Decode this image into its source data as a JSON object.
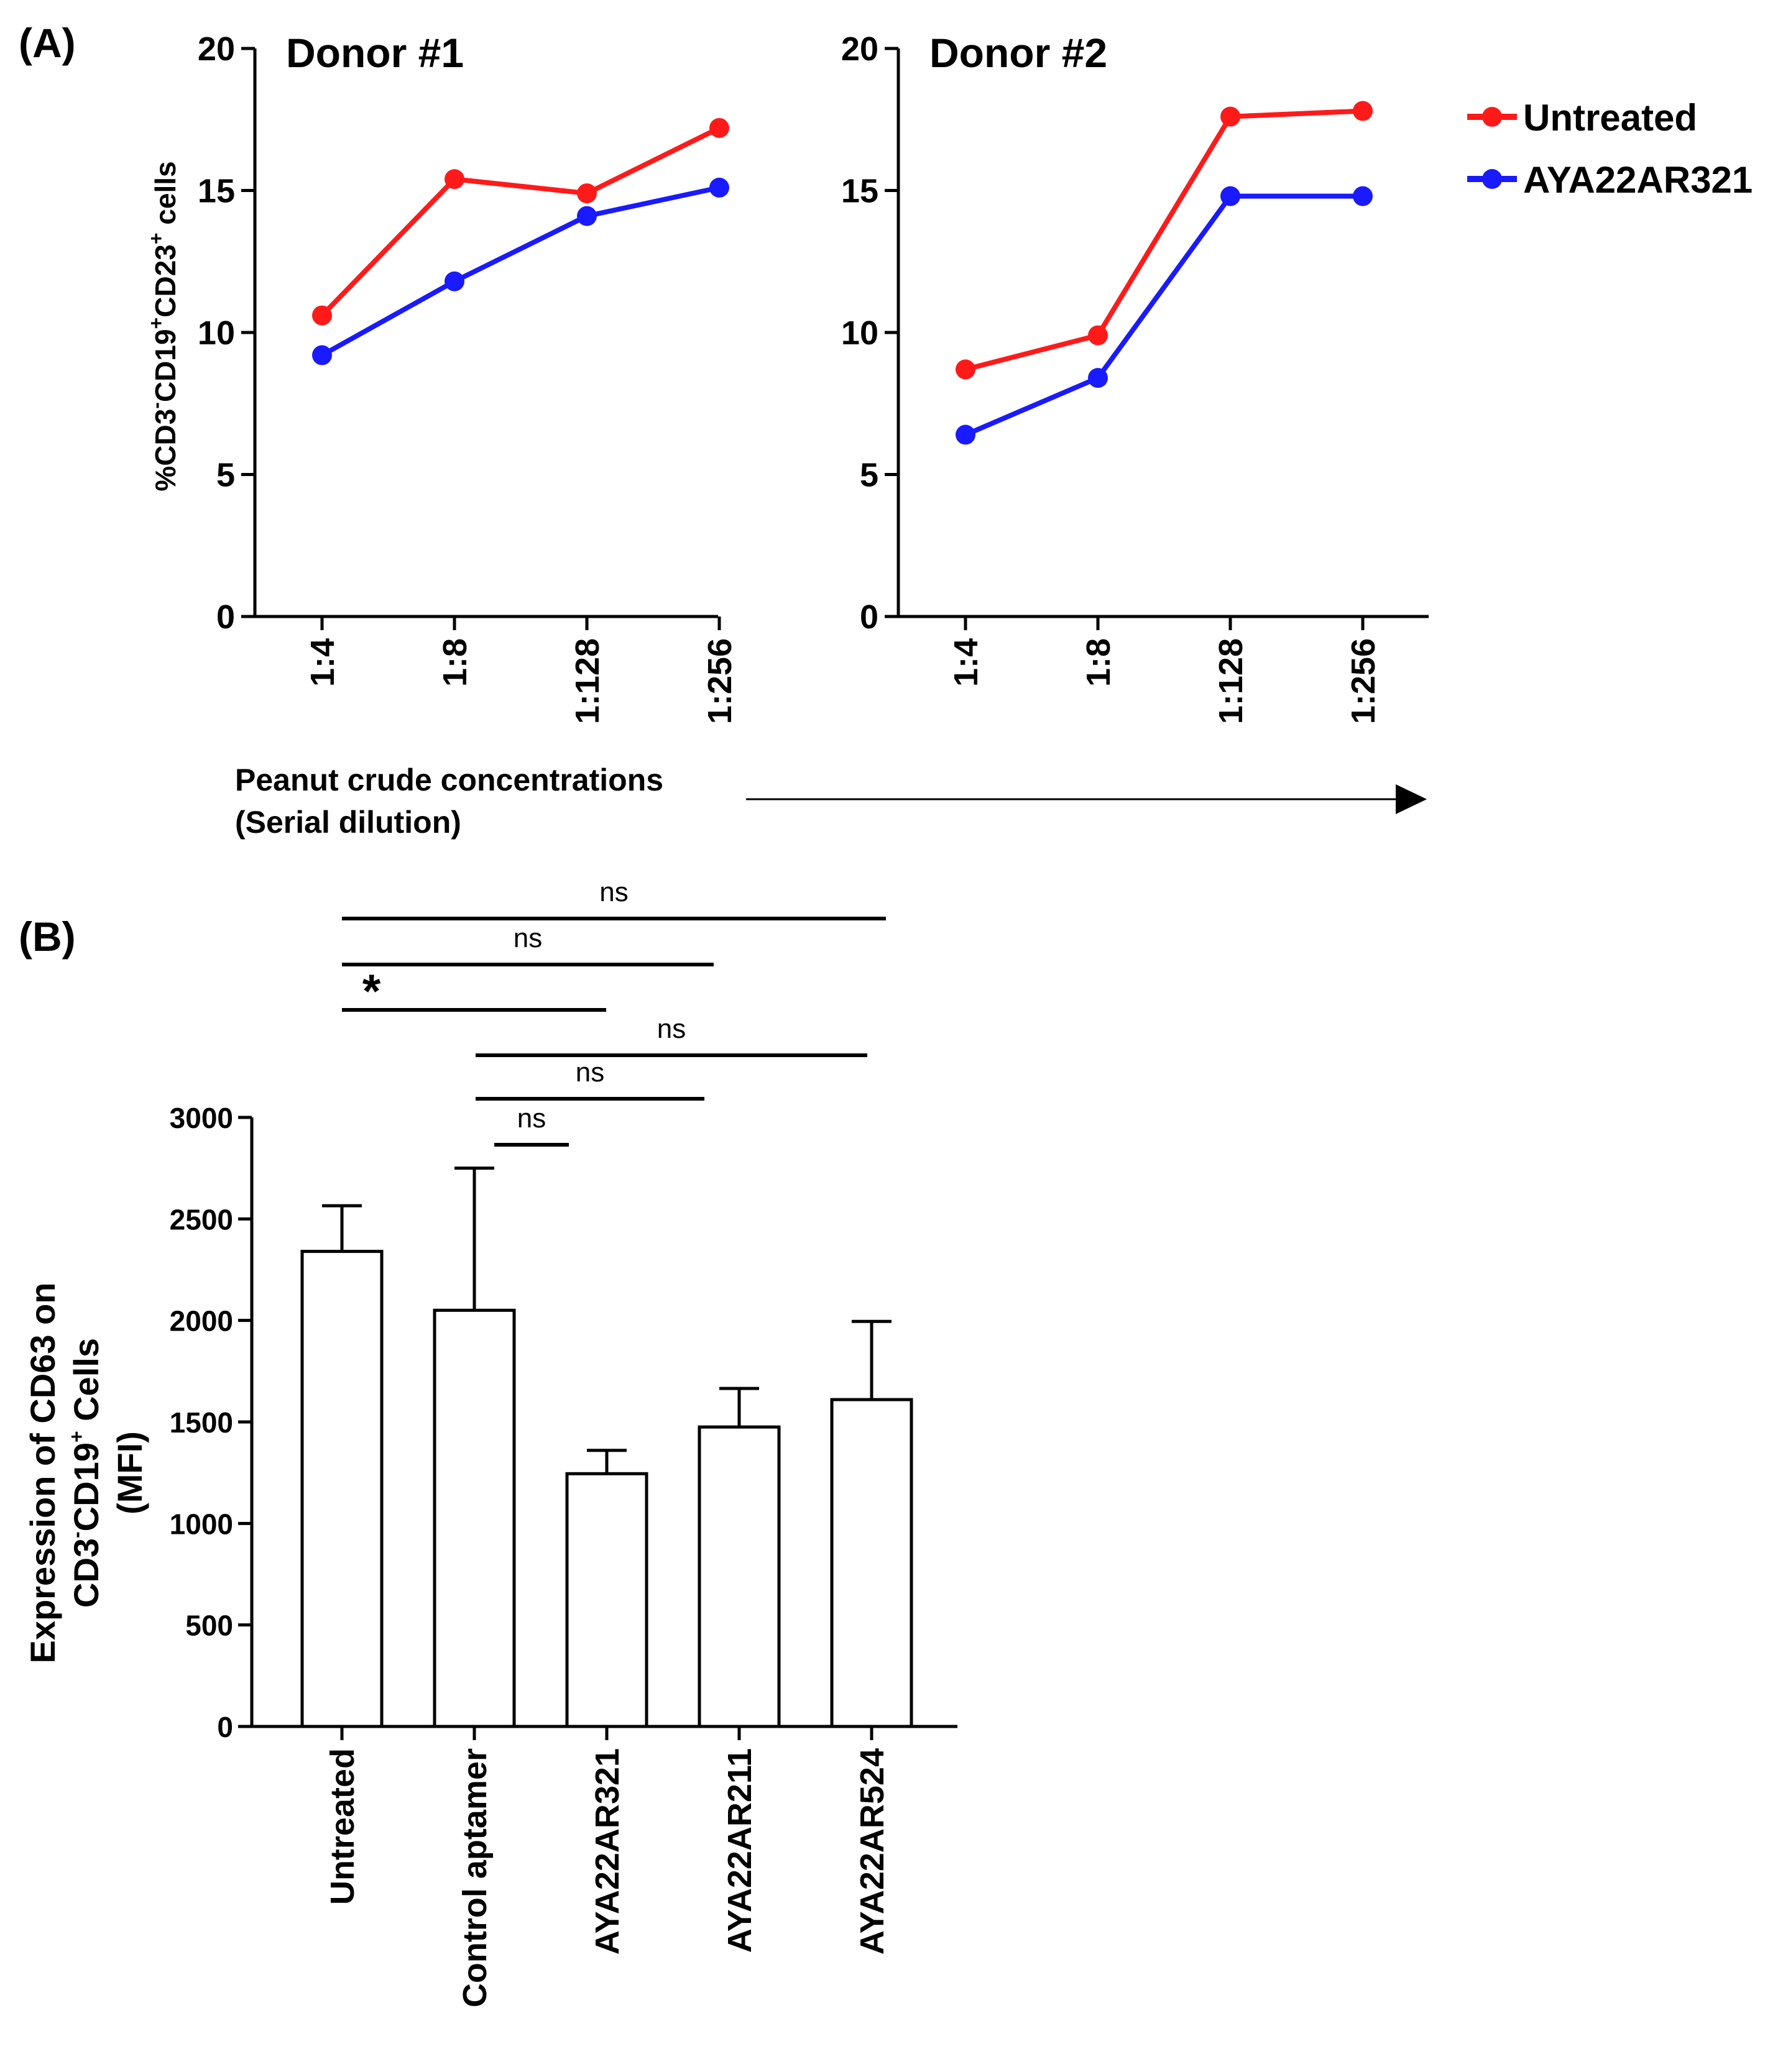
{
  "figure": {
    "panel_a_label": "(A)",
    "panel_b_label": "(B)",
    "x_axis_title_line1": "Peanut crude concentrations",
    "x_axis_title_line2": "(Serial dilution)"
  },
  "colors": {
    "untreated": "#ff1a1a",
    "aya22ar321": "#1a1aff",
    "axis": "#000000"
  },
  "chart_data": [
    {
      "type": "line",
      "title": "Donor #1",
      "categories": [
        "1:4",
        "1:8",
        "1:128",
        "1:256"
      ],
      "ylabel": {
        "prefix": "%CD3",
        "sup1": "-",
        "mid1": "CD19",
        "sup2": "+",
        "mid2": "CD23",
        "sup3": "+",
        "suffix": " cells"
      },
      "ylim": [
        0,
        20
      ],
      "yticks": [
        0,
        5,
        10,
        15,
        20
      ],
      "series": [
        {
          "name": "Untreated",
          "values": [
            10.6,
            15.4,
            14.9,
            17.2
          ]
        },
        {
          "name": "AYA22AR321",
          "values": [
            9.2,
            11.8,
            14.1,
            15.1
          ]
        }
      ]
    },
    {
      "type": "line",
      "title": "Donor #2",
      "categories": [
        "1:4",
        "1:8",
        "1:128",
        "1:256"
      ],
      "ylim": [
        0,
        20
      ],
      "yticks": [
        0,
        5,
        10,
        15,
        20
      ],
      "series": [
        {
          "name": "Untreated",
          "values": [
            8.7,
            9.9,
            17.6,
            17.8
          ]
        },
        {
          "name": "AYA22AR321",
          "values": [
            6.4,
            8.4,
            14.8,
            14.8
          ]
        }
      ],
      "legend": [
        "Untreated",
        "AYA22AR321"
      ]
    },
    {
      "type": "bar",
      "categories": [
        "Untreated",
        "Control aptamer",
        "AYA22AR321",
        "AYA22AR211",
        "AYA22AR524"
      ],
      "values": [
        2340,
        2050,
        1245,
        1475,
        1610
      ],
      "errors": [
        225,
        700,
        115,
        190,
        385
      ],
      "ylim": [
        0,
        3000
      ],
      "yticks": [
        0,
        500,
        1000,
        1500,
        2000,
        2500,
        3000
      ],
      "ylabel": {
        "line1": "Expression of CD63 on",
        "line2_a": "CD3",
        "line2_sup1": "-",
        "line2_b": "CD19",
        "line2_sup2": "+",
        "line2_c": " Cells",
        "line3": "(MFI)"
      },
      "significance": [
        {
          "from": 0,
          "to": 4,
          "label": "ns"
        },
        {
          "from": 0,
          "to": 3,
          "label": "ns"
        },
        {
          "from": 0,
          "to": 2,
          "label": "*"
        },
        {
          "from": 1,
          "to": 4,
          "label": "ns"
        },
        {
          "from": 1,
          "to": 3,
          "label": "ns"
        },
        {
          "from": 1,
          "to": 2,
          "label": "ns"
        }
      ]
    }
  ]
}
